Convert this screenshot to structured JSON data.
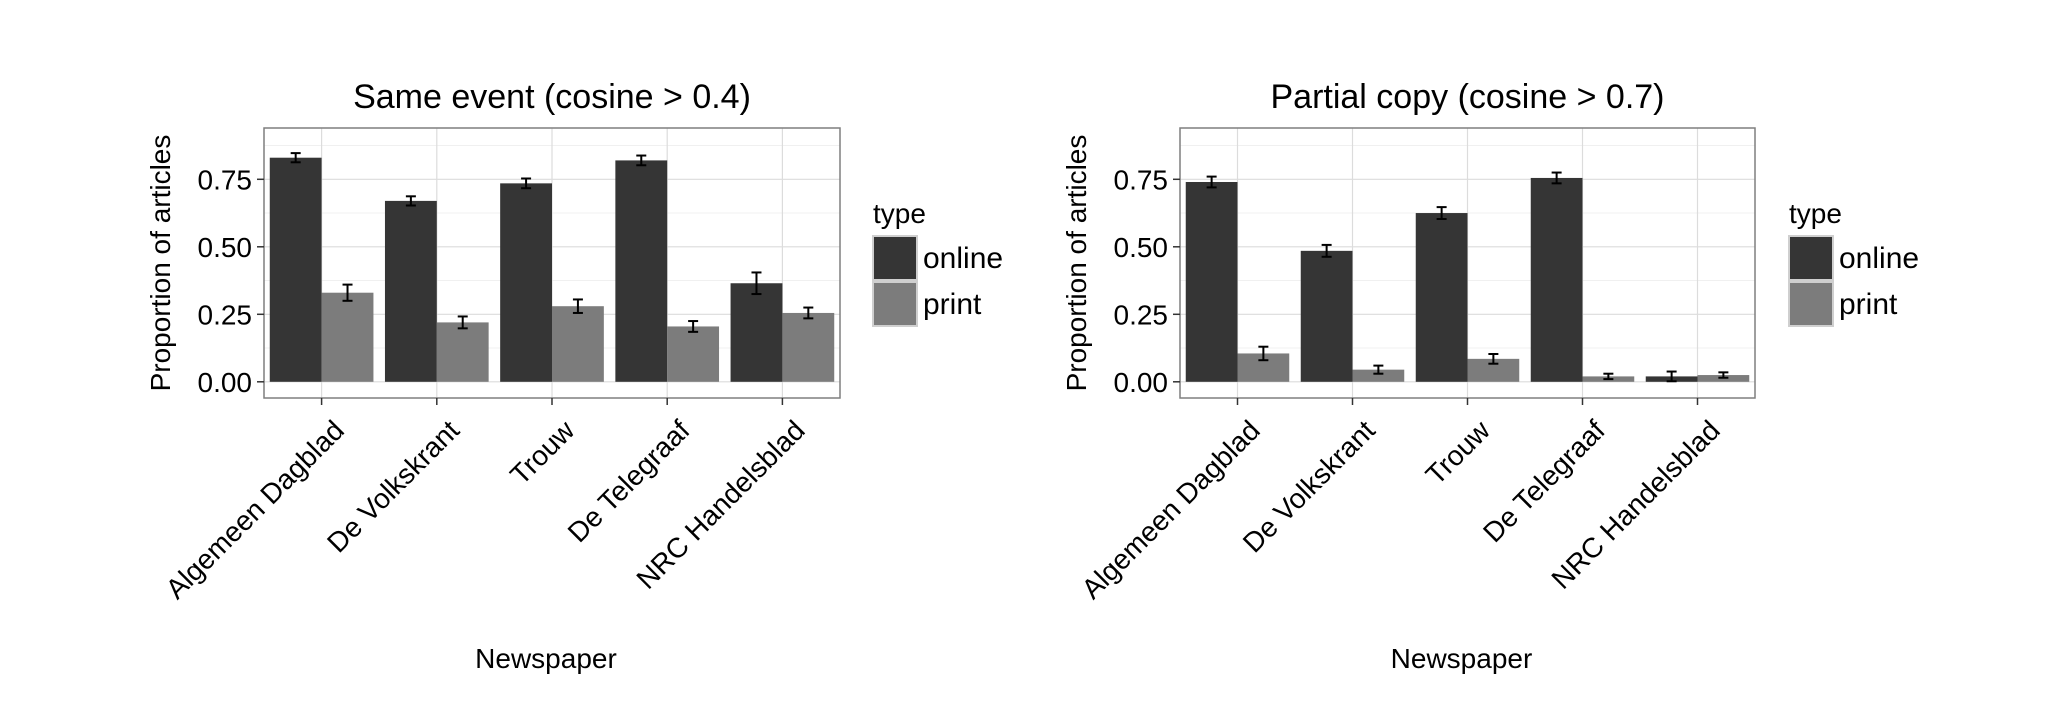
{
  "chart_data": [
    {
      "type": "bar",
      "title": "Same event (cosine > 0.4)",
      "xlabel": "Newspaper",
      "ylabel": "Proportion of articles",
      "categories": [
        "Algemeen Dagblad",
        "De Volkskrant",
        "Trouw",
        "De Telegraaf",
        "NRC Handelsblad"
      ],
      "series": [
        {
          "name": "online",
          "values": [
            0.83,
            0.67,
            0.735,
            0.82,
            0.365
          ],
          "errors": [
            0.017,
            0.017,
            0.018,
            0.018,
            0.04
          ]
        },
        {
          "name": "print",
          "values": [
            0.33,
            0.22,
            0.28,
            0.205,
            0.255
          ],
          "errors": [
            0.03,
            0.022,
            0.025,
            0.02,
            0.02
          ]
        }
      ],
      "ylim": [
        -0.06,
        0.94
      ],
      "yticks": [
        0.0,
        0.25,
        0.5,
        0.75
      ],
      "ytick_labels": [
        "0.00",
        "0.25",
        "0.50",
        "0.75"
      ],
      "legend": {
        "title": "type",
        "position": "right"
      },
      "grid": true
    },
    {
      "type": "bar",
      "title": "Partial copy (cosine > 0.7)",
      "xlabel": "Newspaper",
      "ylabel": "Proportion of articles",
      "categories": [
        "Algemeen Dagblad",
        "De Volkskrant",
        "Trouw",
        "De Telegraaf",
        "NRC Handelsblad"
      ],
      "series": [
        {
          "name": "online",
          "values": [
            0.74,
            0.485,
            0.625,
            0.755,
            0.02
          ],
          "errors": [
            0.02,
            0.022,
            0.022,
            0.02,
            0.018
          ]
        },
        {
          "name": "print",
          "values": [
            0.105,
            0.045,
            0.085,
            0.02,
            0.025
          ],
          "errors": [
            0.025,
            0.015,
            0.018,
            0.01,
            0.01
          ]
        }
      ],
      "ylim": [
        -0.06,
        0.94
      ],
      "yticks": [
        0.0,
        0.25,
        0.5,
        0.75
      ],
      "ytick_labels": [
        "0.00",
        "0.25",
        "0.50",
        "0.75"
      ],
      "legend": {
        "title": "type",
        "position": "right"
      },
      "grid": true
    }
  ],
  "colors": {
    "online": "#353535",
    "print": "#7c7c7c",
    "panel_border": "#7f7f7f",
    "grid_major": "#dcdcdc",
    "grid_minor": "#f0f0f0"
  }
}
